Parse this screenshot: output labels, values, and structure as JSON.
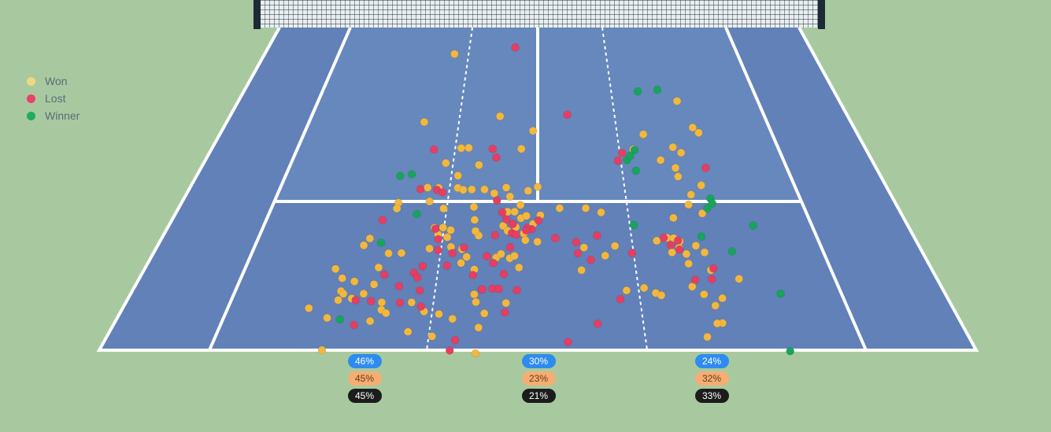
{
  "legend": [
    {
      "label": "Won",
      "color": "#f2d77e"
    },
    {
      "label": "Lost",
      "color": "#e94466"
    },
    {
      "label": "Winner",
      "color": "#1ead5e"
    }
  ],
  "colors": {
    "background": "#a8c9a0",
    "court": "#6181b8",
    "lines": "#ffffff",
    "net": "#1d2b35",
    "won": "#f2b73e",
    "lost": "#e63e63",
    "winner": "#17a55c"
  },
  "zones": [
    {
      "name": "left",
      "pct": [
        "46%",
        "45%",
        "45%"
      ]
    },
    {
      "name": "center",
      "pct": [
        "30%",
        "23%",
        "21%"
      ]
    },
    {
      "name": "right",
      "pct": [
        "24%",
        "32%",
        "33%"
      ]
    }
  ],
  "chart_data": {
    "type": "scatter",
    "title": "",
    "xlabel": "",
    "ylabel": "",
    "xlim": [
      -1,
      1
    ],
    "ylim": [
      0,
      1
    ],
    "series": [
      {
        "name": "Won",
        "points": [
          [
            -0.417,
            0.918
          ],
          [
            -0.495,
            0.707
          ],
          [
            -0.166,
            0.725
          ],
          [
            -0.068,
            0.624
          ],
          [
            -0.318,
            0.626
          ],
          [
            -0.287,
            0.627
          ],
          [
            -0.372,
            0.58
          ],
          [
            -0.237,
            0.574
          ],
          [
            -0.316,
            0.541
          ],
          [
            -0.427,
            0.504
          ],
          [
            -0.384,
            0.503
          ],
          [
            -0.31,
            0.503
          ],
          [
            -0.288,
            0.497
          ],
          [
            -0.206,
            0.498
          ],
          [
            -0.255,
            0.498
          ],
          [
            -0.122,
            0.504
          ],
          [
            -0.167,
            0.486
          ],
          [
            -0.065,
            0.45
          ],
          [
            -0.106,
            0.476
          ],
          [
            -0.037,
            0.494
          ],
          [
            0.0,
            0.506
          ],
          [
            -0.527,
            0.457
          ],
          [
            -0.528,
            0.439
          ],
          [
            -0.41,
            0.461
          ],
          [
            -0.353,
            0.439
          ],
          [
            -0.24,
            0.444
          ],
          [
            -0.232,
            0.404
          ],
          [
            -0.112,
            0.429
          ],
          [
            -0.086,
            0.429
          ],
          [
            -0.062,
            0.409
          ],
          [
            -0.042,
            0.416
          ],
          [
            -0.017,
            0.391
          ],
          [
            -0.375,
            0.379
          ],
          [
            -0.344,
            0.38
          ],
          [
            -0.358,
            0.358
          ],
          [
            -0.324,
            0.35
          ],
          [
            -0.315,
            0.372
          ],
          [
            -0.212,
            0.355
          ],
          [
            -0.225,
            0.369
          ],
          [
            -0.126,
            0.385
          ],
          [
            -0.08,
            0.381
          ],
          [
            -0.109,
            0.37
          ],
          [
            -0.05,
            0.362
          ],
          [
            -0.044,
            0.341
          ],
          [
            -0.001,
            0.336
          ],
          [
            -0.6,
            0.346
          ],
          [
            -0.615,
            0.325
          ],
          [
            -0.521,
            0.3
          ],
          [
            -0.476,
            0.301
          ],
          [
            -0.381,
            0.315
          ],
          [
            -0.306,
            0.32
          ],
          [
            -0.266,
            0.313
          ],
          [
            -0.264,
            0.27
          ],
          [
            -0.216,
            0.25
          ],
          [
            -0.247,
            0.289
          ],
          [
            -0.144,
            0.287
          ],
          [
            -0.097,
            0.285
          ],
          [
            -0.081,
            0.292
          ],
          [
            -0.128,
            0.298
          ],
          [
            -0.064,
            0.256
          ],
          [
            -0.69,
            0.252
          ],
          [
            -0.658,
            0.223
          ],
          [
            -0.614,
            0.213
          ],
          [
            -0.65,
            0.183
          ],
          [
            -0.573,
            0.175
          ],
          [
            -0.546,
            0.204
          ],
          [
            -0.544,
            0.256
          ],
          [
            -0.507,
            0.148
          ],
          [
            -0.41,
            0.148
          ],
          [
            -0.503,
            0.125
          ],
          [
            -0.531,
            0.09
          ],
          [
            -0.486,
            0.115
          ],
          [
            -0.365,
            0.12
          ],
          [
            -0.316,
            0.112
          ],
          [
            -0.271,
            0.097
          ],
          [
            -0.209,
            0.173
          ],
          [
            -0.201,
            0.149
          ],
          [
            -0.171,
            0.114
          ],
          [
            -0.186,
            0.07
          ],
          [
            -0.103,
            0.146
          ],
          [
            -0.189,
            -0.01
          ],
          [
            -0.328,
            0.043
          ],
          [
            -0.493,
            -0.027
          ],
          [
            -0.657,
            0.0
          ],
          [
            -0.738,
            0.13
          ],
          [
            -0.64,
            0.175
          ],
          [
            -0.608,
            0.16
          ],
          [
            -0.651,
            0.155
          ],
          [
            -0.67,
            0.1
          ],
          [
            -0.405,
            0.057
          ],
          [
            0.082,
            0.44
          ],
          [
            0.01,
            0.418
          ],
          [
            0.18,
            0.44
          ],
          [
            0.236,
            0.427
          ],
          [
            0.273,
            0.323
          ],
          [
            0.235,
            0.293
          ],
          [
            0.149,
            0.248
          ],
          [
            0.163,
            0.318
          ],
          [
            0.294,
            0.185
          ],
          [
            0.389,
            0.177
          ],
          [
            0.406,
            0.17
          ],
          [
            0.353,
            0.193
          ],
          [
            0.519,
            0.268
          ],
          [
            0.505,
            0.337
          ],
          [
            0.498,
            0.317
          ],
          [
            0.519,
            0.298
          ],
          [
            0.514,
            0.197
          ],
          [
            0.547,
            0.173
          ],
          [
            0.575,
            0.138
          ],
          [
            0.604,
            0.161
          ],
          [
            0.584,
            0.084
          ],
          [
            0.526,
            0.041
          ],
          [
            0.567,
            0.083
          ],
          [
            0.677,
            0.221
          ],
          [
            0.584,
            0.303
          ],
          [
            0.59,
            0.248
          ],
          [
            0.559,
            0.324
          ],
          [
            0.463,
            0.348
          ],
          [
            0.424,
            0.339
          ],
          [
            0.47,
            0.303
          ],
          [
            0.486,
            0.347
          ],
          [
            0.501,
            0.41
          ],
          [
            0.569,
            0.451
          ],
          [
            0.612,
            0.424
          ],
          [
            0.555,
            0.538
          ],
          [
            0.637,
            0.511
          ],
          [
            0.588,
            0.482
          ],
          [
            0.553,
            0.565
          ],
          [
            0.45,
            0.669
          ],
          [
            0.396,
            0.622
          ],
          [
            0.5,
            0.589
          ],
          [
            0.563,
            0.629
          ],
          [
            0.591,
            0.612
          ],
          [
            0.688,
            0.674
          ],
          [
            0.633,
            0.772
          ],
          [
            0.669,
            0.69
          ],
          [
            -0.02,
            0.68
          ]
        ]
      },
      {
        "name": "Lost",
        "points": [
          [
            -0.114,
            0.938
          ],
          [
            0.131,
            0.73
          ],
          [
            -0.43,
            0.622
          ],
          [
            -0.454,
            0.499
          ],
          [
            -0.39,
            0.497
          ],
          [
            -0.366,
            0.489
          ],
          [
            -0.187,
            0.624
          ],
          [
            -0.169,
            0.597
          ],
          [
            -0.155,
            0.464
          ],
          [
            -0.132,
            0.427
          ],
          [
            -0.153,
            0.356
          ],
          [
            -0.115,
            0.405
          ],
          [
            -0.091,
            0.391
          ],
          [
            -0.093,
            0.363
          ],
          [
            -0.022,
            0.375
          ],
          [
            -0.571,
            0.403
          ],
          [
            -0.371,
            0.376
          ],
          [
            -0.355,
            0.344
          ],
          [
            -0.35,
            0.31
          ],
          [
            -0.394,
            0.26
          ],
          [
            -0.311,
            0.262
          ],
          [
            -0.298,
            0.301
          ],
          [
            -0.26,
            0.318
          ],
          [
            -0.177,
            0.291
          ],
          [
            -0.153,
            0.27
          ],
          [
            -0.115,
            0.236
          ],
          [
            -0.219,
            0.233
          ],
          [
            -0.185,
            0.188
          ],
          [
            -0.184,
            0.189
          ],
          [
            -0.15,
            0.191
          ],
          [
            -0.129,
            0.19
          ],
          [
            -0.069,
            0.186
          ],
          [
            -0.097,
            0.319
          ],
          [
            -0.078,
            0.358
          ],
          [
            -0.038,
            0.378
          ],
          [
            -0.042,
            0.371
          ],
          [
            0.003,
            0.402
          ],
          [
            -0.42,
            0.24
          ],
          [
            -0.405,
            0.225
          ],
          [
            -0.519,
            0.234
          ],
          [
            -0.461,
            0.198
          ],
          [
            -0.448,
            0.147
          ],
          [
            -0.39,
            0.185
          ],
          [
            -0.377,
            0.135
          ],
          [
            -0.543,
            0.152
          ],
          [
            -0.594,
            0.155
          ],
          [
            -0.579,
            0.078
          ],
          [
            -0.255,
            0.031
          ],
          [
            -0.268,
            -0.001
          ],
          [
            -0.105,
            0.117
          ],
          [
            0.063,
            0.347
          ],
          [
            0.137,
            0.335
          ],
          [
            0.213,
            0.355
          ],
          [
            0.184,
            0.28
          ],
          [
            0.348,
            0.611
          ],
          [
            0.326,
            0.587
          ],
          [
            0.27,
            0.158
          ],
          [
            0.189,
            0.082
          ],
          [
            0.451,
            0.348
          ],
          [
            0.471,
            0.326
          ],
          [
            0.5,
            0.34
          ],
          [
            0.498,
            0.312
          ],
          [
            0.529,
            0.218
          ],
          [
            0.586,
            0.22
          ],
          [
            0.6,
            0.253
          ],
          [
            0.674,
            0.565
          ],
          [
            0.33,
            0.301
          ],
          [
            0.14,
            0.3
          ],
          [
            0.093,
            0.025
          ]
        ]
      },
      {
        "name": "Winner",
        "points": [
          [
            -0.544,
            0.54
          ],
          [
            -0.5,
            0.545
          ],
          [
            -0.449,
            0.422
          ],
          [
            -0.556,
            0.333
          ],
          [
            -0.628,
            0.095
          ],
          [
            0.463,
            0.802
          ],
          [
            0.556,
            0.807
          ],
          [
            0.363,
            0.589
          ],
          [
            0.392,
            0.556
          ],
          [
            0.401,
            0.62
          ],
          [
            0.379,
            0.602
          ],
          [
            0.351,
            0.388
          ],
          [
            0.658,
            0.47
          ],
          [
            0.636,
            0.44
          ],
          [
            0.66,
            0.455
          ],
          [
            0.587,
            0.352
          ],
          [
            0.681,
            0.306
          ],
          [
            0.786,
            0.386
          ],
          [
            0.8,
            0.175
          ],
          [
            0.768,
            -0.003
          ]
        ]
      }
    ]
  }
}
